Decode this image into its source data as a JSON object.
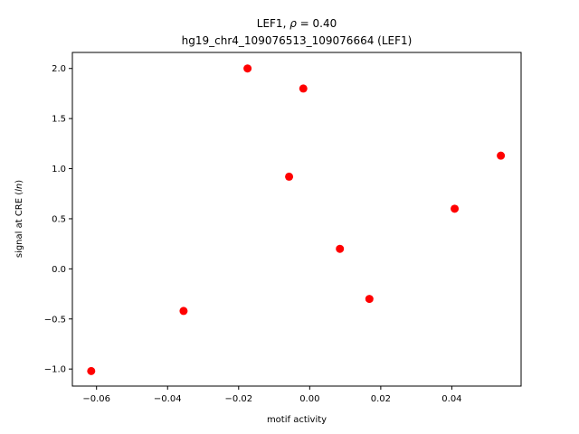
{
  "chart_data": {
    "type": "scatter",
    "title_line1_prefix": "LEF1, ",
    "title_line1_symbol": "ρ",
    "title_line1_suffix": " = 0.40",
    "title_line2": "hg19_chr4_109076513_109076664 (LEF1)",
    "xlabel": "motif activity",
    "ylabel_prefix": "signal at CRE (",
    "ylabel_italic": "ln",
    "ylabel_suffix": ")",
    "xlim": [
      -0.0668,
      0.0595
    ],
    "ylim": [
      -1.17,
      2.16
    ],
    "xticks": [
      -0.06,
      -0.04,
      -0.02,
      0.0,
      0.02,
      0.04
    ],
    "xtick_labels": [
      "−0.06",
      "−0.04",
      "−0.02",
      "0.00",
      "0.02",
      "0.04"
    ],
    "yticks": [
      -1.0,
      -0.5,
      0.0,
      0.5,
      1.0,
      1.5,
      2.0
    ],
    "ytick_labels": [
      "−1.0",
      "−0.5",
      "0.0",
      "0.5",
      "1.0",
      "1.5",
      "2.0"
    ],
    "grid": false,
    "marker_color": "#ff0000",
    "points": [
      {
        "x": -0.0615,
        "y": -1.02
      },
      {
        "x": -0.0355,
        "y": -0.42
      },
      {
        "x": -0.0175,
        "y": 2.0
      },
      {
        "x": -0.0058,
        "y": 0.92
      },
      {
        "x": -0.0018,
        "y": 1.8
      },
      {
        "x": 0.0085,
        "y": 0.2
      },
      {
        "x": 0.0168,
        "y": -0.3
      },
      {
        "x": 0.0408,
        "y": 0.6
      },
      {
        "x": 0.0538,
        "y": 1.13
      }
    ]
  }
}
